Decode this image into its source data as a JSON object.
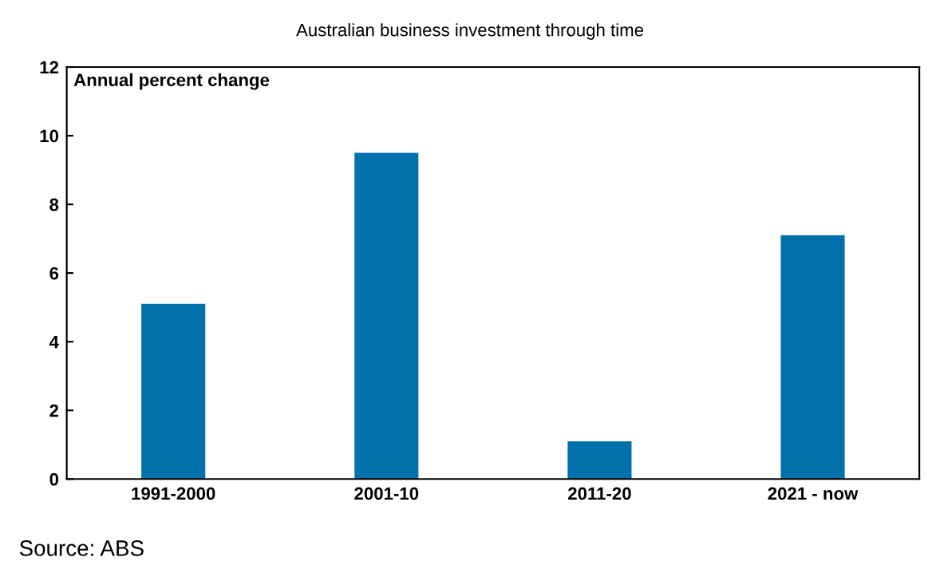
{
  "chart_data": {
    "type": "bar",
    "title": "Australian business investment through time",
    "ylabel": "Annual percent change",
    "categories": [
      "1991-2000",
      "2001-10",
      "2011-20",
      "2021 - now"
    ],
    "values": [
      5.1,
      9.5,
      1.1,
      7.1
    ],
    "color": "#0071aa",
    "ylim": [
      0,
      12
    ],
    "yticks": [
      0,
      2,
      4,
      6,
      8,
      10,
      12
    ],
    "grid": false,
    "annotations": [
      "Source: ABS"
    ]
  }
}
